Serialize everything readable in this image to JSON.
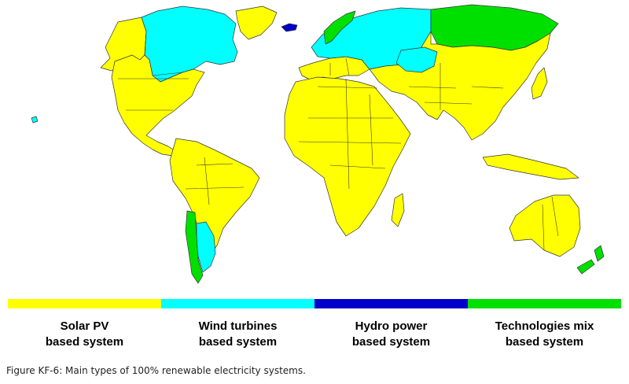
{
  "map": {
    "colors": {
      "solar": "#FFFF00",
      "wind": "#00FFFF",
      "hydro": "#0000CC",
      "mix": "#00E000"
    },
    "regions": [
      {
        "name": "North America (south)",
        "type": "solar"
      },
      {
        "name": "Canada",
        "type": "wind"
      },
      {
        "name": "Alaska",
        "type": "solar"
      },
      {
        "name": "Central America",
        "type": "solar"
      },
      {
        "name": "South America",
        "type": "solar"
      },
      {
        "name": "Chile",
        "type": "mix"
      },
      {
        "name": "Argentina (south)",
        "type": "wind"
      },
      {
        "name": "Iceland",
        "type": "hydro"
      },
      {
        "name": "Norway",
        "type": "mix"
      },
      {
        "name": "Northern Europe",
        "type": "wind"
      },
      {
        "name": "Southern Europe",
        "type": "solar"
      },
      {
        "name": "Africa",
        "type": "solar"
      },
      {
        "name": "Middle East",
        "type": "solar"
      },
      {
        "name": "Central Asia",
        "type": "wind"
      },
      {
        "name": "Siberia",
        "type": "mix"
      },
      {
        "name": "South and East Asia",
        "type": "solar"
      },
      {
        "name": "Australia",
        "type": "solar"
      },
      {
        "name": "New Zealand",
        "type": "mix"
      }
    ]
  },
  "legend": [
    {
      "key": "solar",
      "label": "Solar PV\nbased system",
      "color": "#FFFF00"
    },
    {
      "key": "wind",
      "label": "Wind turbines\nbased system",
      "color": "#00FFFF"
    },
    {
      "key": "hydro",
      "label": "Hydro power\nbased system",
      "color": "#0000CC"
    },
    {
      "key": "mix",
      "label": "Technologies mix\nbased system",
      "color": "#00E000"
    }
  ],
  "caption": "Figure KF-6: Main types of 100% renewable electricity systems."
}
